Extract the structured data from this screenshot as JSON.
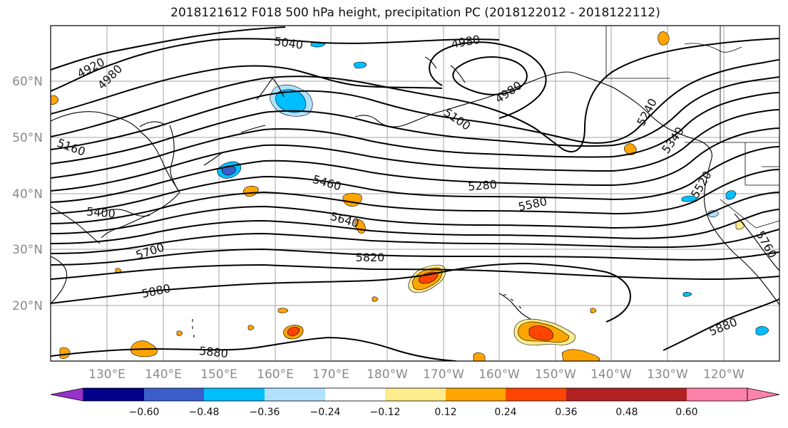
{
  "title": "2018121612 F018 500 hPa height, precipitation PC (2018122012 - 2018122112)",
  "latitude_labels": [
    "60°N",
    "50°N",
    "40°N",
    "30°N",
    "20°N"
  ],
  "longitude_labels": [
    "130°E",
    "140°E",
    "150°E",
    "160°E",
    "170°E",
    "180°W",
    "170°W",
    "160°W",
    "150°W",
    "140°W",
    "130°W",
    "120°W"
  ],
  "contour_labels": [
    "4920",
    "4980",
    "5040",
    "4980",
    "4980",
    "5100",
    "5160",
    "5240",
    "5340",
    "5460",
    "5280",
    "5400",
    "5640",
    "5580",
    "5520",
    "5700",
    "5820",
    "5760",
    "5880",
    "5880",
    "5880"
  ],
  "colorbar": {
    "ticks": [
      "−0.60",
      "−0.48",
      "−0.36",
      "−0.24",
      "−0.12",
      "0.12",
      "0.24",
      "0.36",
      "0.48",
      "0.60"
    ],
    "colors": [
      "#9932cc",
      "#00008b",
      "#3a5fcd",
      "#00bfff",
      "#b0e2ff",
      "#ffffff",
      "#ffec8b",
      "#ffa500",
      "#ff4500",
      "#b22222",
      "#ff82ab"
    ]
  }
}
